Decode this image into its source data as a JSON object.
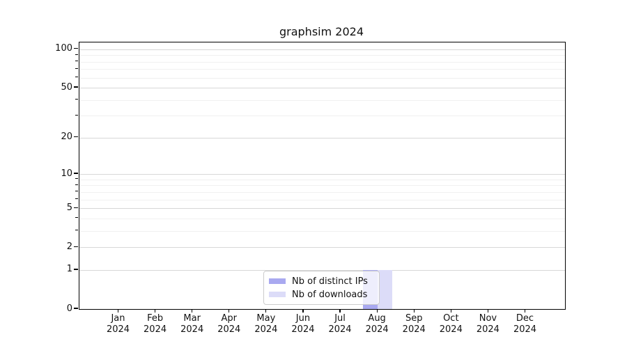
{
  "chart_data": {
    "type": "bar",
    "title": "graphsim 2024",
    "categories": [
      "Jan",
      "Feb",
      "Mar",
      "Apr",
      "May",
      "Jun",
      "Jul",
      "Aug",
      "Sep",
      "Oct",
      "Nov",
      "Dec"
    ],
    "year": "2024",
    "series": [
      {
        "name": "Nb of distinct IPs",
        "color": "#a9a9f0",
        "values": [
          0,
          0,
          0,
          0,
          0,
          0,
          0,
          1,
          0,
          0,
          0,
          0
        ]
      },
      {
        "name": "Nb of downloads",
        "color": "#dcdcf8",
        "values": [
          0,
          0,
          0,
          0,
          0,
          0,
          0,
          1,
          0,
          0,
          0,
          0
        ]
      }
    ],
    "yscale": "log1p",
    "ylim": [
      0,
      113
    ],
    "y_major_ticks": [
      0,
      1,
      2,
      5,
      10,
      20,
      50,
      100
    ],
    "y_minor_ticks": [
      3,
      4,
      6,
      7,
      8,
      9,
      30,
      40,
      60,
      70,
      80,
      90
    ],
    "grid": true,
    "legend_position": "lower-center-inside"
  },
  "colors": {
    "grid_major": "#d7d7d7",
    "grid_minor": "#f0f0f0",
    "axis": "#000000",
    "legend_border": "#cccccc",
    "background": "#ffffff"
  }
}
